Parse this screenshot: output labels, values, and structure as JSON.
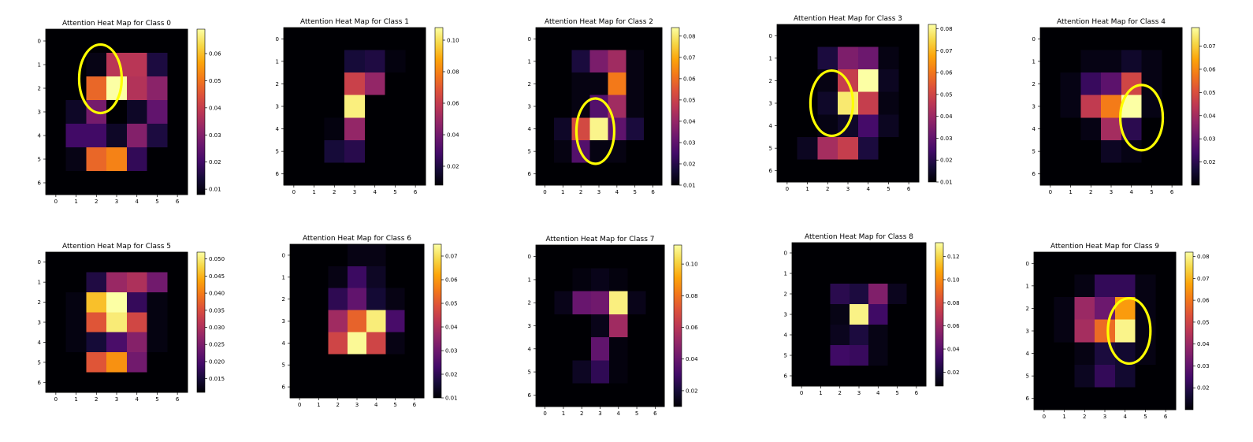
{
  "colormap": "inferno",
  "highlight_color": "#ffff00",
  "chart_data": [
    {
      "type": "heatmap",
      "title": "Attention Heat Map for Class 0",
      "x_ticks": [
        "0",
        "1",
        "2",
        "3",
        "4",
        "5",
        "6"
      ],
      "y_ticks": [
        "0",
        "1",
        "2",
        "3",
        "4",
        "5",
        "6"
      ],
      "vmin": 0.008,
      "vmax": 0.069,
      "colorbar_ticks": [
        "0.01",
        "0.02",
        "0.03",
        "0.04",
        "0.05",
        "0.06"
      ],
      "values": [
        [
          0.008,
          0.008,
          0.008,
          0.008,
          0.008,
          0.008,
          0.008
        ],
        [
          0.008,
          0.008,
          0.01,
          0.038,
          0.038,
          0.015,
          0.008
        ],
        [
          0.008,
          0.008,
          0.048,
          0.069,
          0.037,
          0.031,
          0.008
        ],
        [
          0.008,
          0.012,
          0.028,
          0.008,
          0.012,
          0.025,
          0.008
        ],
        [
          0.008,
          0.02,
          0.02,
          0.012,
          0.03,
          0.015,
          0.008
        ],
        [
          0.008,
          0.01,
          0.048,
          0.052,
          0.018,
          0.008,
          0.008
        ],
        [
          0.008,
          0.008,
          0.008,
          0.008,
          0.008,
          0.008,
          0.008
        ]
      ],
      "circle": {
        "row": 1.6,
        "col": 2.2
      }
    },
    {
      "type": "heatmap",
      "title": "Attention Heat Map for Class 1",
      "x_ticks": [
        "0",
        "1",
        "2",
        "3",
        "4",
        "5",
        "6"
      ],
      "y_ticks": [
        "0",
        "1",
        "2",
        "3",
        "4",
        "5",
        "6"
      ],
      "vmin": 0.008,
      "vmax": 0.108,
      "colorbar_ticks": [
        "0.02",
        "0.04",
        "0.06",
        "0.08",
        "0.10"
      ],
      "values": [
        [
          0.008,
          0.008,
          0.008,
          0.008,
          0.008,
          0.008,
          0.008
        ],
        [
          0.008,
          0.008,
          0.008,
          0.018,
          0.02,
          0.01,
          0.008
        ],
        [
          0.008,
          0.008,
          0.008,
          0.062,
          0.048,
          0.008,
          0.008
        ],
        [
          0.008,
          0.008,
          0.008,
          0.104,
          0.008,
          0.008,
          0.008
        ],
        [
          0.008,
          0.008,
          0.01,
          0.048,
          0.008,
          0.008,
          0.008
        ],
        [
          0.008,
          0.008,
          0.018,
          0.022,
          0.008,
          0.008,
          0.008
        ],
        [
          0.008,
          0.008,
          0.008,
          0.008,
          0.008,
          0.008,
          0.008
        ]
      ]
    },
    {
      "type": "heatmap",
      "title": "Attention Heat Map for Class 2",
      "x_ticks": [
        "0",
        "1",
        "2",
        "3",
        "4",
        "5",
        "6"
      ],
      "y_ticks": [
        "0",
        "1",
        "2",
        "3",
        "4",
        "5",
        "6"
      ],
      "vmin": 0.01,
      "vmax": 0.084,
      "colorbar_ticks": [
        "0.01",
        "0.02",
        "0.03",
        "0.04",
        "0.05",
        "0.06",
        "0.07",
        "0.08"
      ],
      "values": [
        [
          0.01,
          0.01,
          0.01,
          0.01,
          0.01,
          0.01,
          0.01
        ],
        [
          0.01,
          0.01,
          0.018,
          0.035,
          0.042,
          0.012,
          0.01
        ],
        [
          0.01,
          0.01,
          0.012,
          0.012,
          0.062,
          0.012,
          0.01
        ],
        [
          0.01,
          0.01,
          0.012,
          0.028,
          0.042,
          0.012,
          0.01
        ],
        [
          0.01,
          0.015,
          0.052,
          0.082,
          0.03,
          0.018,
          0.01
        ],
        [
          0.01,
          0.012,
          0.028,
          0.012,
          0.012,
          0.01,
          0.01
        ],
        [
          0.01,
          0.01,
          0.01,
          0.01,
          0.01,
          0.01,
          0.01
        ]
      ],
      "circle": {
        "row": 4.1,
        "col": 2.8
      }
    },
    {
      "type": "heatmap",
      "title": "Attention Heat Map for Class 3",
      "x_ticks": [
        "0",
        "1",
        "2",
        "3",
        "4",
        "5",
        "6"
      ],
      "y_ticks": [
        "0",
        "1",
        "2",
        "3",
        "4",
        "5",
        "6"
      ],
      "vmin": 0.01,
      "vmax": 0.082,
      "colorbar_ticks": [
        "0.01",
        "0.02",
        "0.03",
        "0.04",
        "0.05",
        "0.06",
        "0.07",
        "0.08"
      ],
      "values": [
        [
          0.01,
          0.01,
          0.01,
          0.01,
          0.01,
          0.01,
          0.01
        ],
        [
          0.01,
          0.01,
          0.018,
          0.035,
          0.032,
          0.012,
          0.01
        ],
        [
          0.01,
          0.01,
          0.012,
          0.048,
          0.082,
          0.014,
          0.01
        ],
        [
          0.01,
          0.01,
          0.015,
          0.078,
          0.048,
          0.012,
          0.01
        ],
        [
          0.01,
          0.01,
          0.012,
          0.015,
          0.025,
          0.014,
          0.01
        ],
        [
          0.01,
          0.014,
          0.042,
          0.048,
          0.018,
          0.01,
          0.01
        ],
        [
          0.01,
          0.01,
          0.01,
          0.01,
          0.01,
          0.01,
          0.01
        ]
      ],
      "circle": {
        "row": 3.0,
        "col": 2.2
      }
    },
    {
      "type": "heatmap",
      "title": "Attention Heat Map for Class 4",
      "x_ticks": [
        "0",
        "1",
        "2",
        "3",
        "4",
        "5",
        "6"
      ],
      "y_ticks": [
        "0",
        "1",
        "2",
        "3",
        "4",
        "5",
        "6"
      ],
      "vmin": 0.01,
      "vmax": 0.078,
      "colorbar_ticks": [
        "0.02",
        "0.03",
        "0.04",
        "0.05",
        "0.06",
        "0.07"
      ],
      "values": [
        [
          0.01,
          0.01,
          0.01,
          0.01,
          0.01,
          0.01,
          0.01
        ],
        [
          0.01,
          0.01,
          0.012,
          0.012,
          0.015,
          0.012,
          0.01
        ],
        [
          0.01,
          0.012,
          0.022,
          0.028,
          0.048,
          0.012,
          0.01
        ],
        [
          0.01,
          0.012,
          0.045,
          0.058,
          0.078,
          0.012,
          0.01
        ],
        [
          0.01,
          0.01,
          0.012,
          0.04,
          0.02,
          0.01,
          0.01
        ],
        [
          0.01,
          0.01,
          0.01,
          0.014,
          0.012,
          0.01,
          0.01
        ],
        [
          0.01,
          0.01,
          0.01,
          0.01,
          0.01,
          0.01,
          0.01
        ]
      ],
      "circle": {
        "row": 3.5,
        "col": 4.5
      }
    },
    {
      "type": "heatmap",
      "title": "Attention Heat Map for Class 5",
      "x_ticks": [
        "0",
        "1",
        "2",
        "3",
        "4",
        "5",
        "6"
      ],
      "y_ticks": [
        "0",
        "1",
        "2",
        "3",
        "4",
        "5",
        "6"
      ],
      "vmin": 0.011,
      "vmax": 0.052,
      "colorbar_ticks": [
        "0.015",
        "0.020",
        "0.025",
        "0.030",
        "0.035",
        "0.040",
        "0.045",
        "0.050"
      ],
      "values": [
        [
          0.011,
          0.011,
          0.011,
          0.011,
          0.011,
          0.011,
          0.011
        ],
        [
          0.011,
          0.011,
          0.016,
          0.028,
          0.03,
          0.024,
          0.011
        ],
        [
          0.011,
          0.012,
          0.046,
          0.052,
          0.018,
          0.012,
          0.011
        ],
        [
          0.011,
          0.012,
          0.036,
          0.05,
          0.034,
          0.012,
          0.011
        ],
        [
          0.011,
          0.012,
          0.015,
          0.02,
          0.026,
          0.012,
          0.011
        ],
        [
          0.011,
          0.011,
          0.036,
          0.042,
          0.024,
          0.011,
          0.011
        ],
        [
          0.011,
          0.011,
          0.011,
          0.011,
          0.011,
          0.011,
          0.011
        ]
      ]
    },
    {
      "type": "heatmap",
      "title": "Attention Heat Map for Class 6",
      "x_ticks": [
        "0",
        "1",
        "2",
        "3",
        "4",
        "5",
        "6"
      ],
      "y_ticks": [
        "0",
        "1",
        "2",
        "3",
        "4",
        "5",
        "6"
      ],
      "vmin": 0.01,
      "vmax": 0.075,
      "colorbar_ticks": [
        "0.01",
        "0.02",
        "0.03",
        "0.04",
        "0.05",
        "0.06",
        "0.07"
      ],
      "values": [
        [
          0.01,
          0.01,
          0.01,
          0.012,
          0.012,
          0.01,
          0.01
        ],
        [
          0.01,
          0.01,
          0.012,
          0.022,
          0.014,
          0.01,
          0.01
        ],
        [
          0.01,
          0.01,
          0.02,
          0.028,
          0.016,
          0.012,
          0.01
        ],
        [
          0.01,
          0.01,
          0.038,
          0.052,
          0.072,
          0.024,
          0.01
        ],
        [
          0.01,
          0.01,
          0.046,
          0.074,
          0.046,
          0.012,
          0.01
        ],
        [
          0.01,
          0.01,
          0.01,
          0.01,
          0.01,
          0.01,
          0.01
        ],
        [
          0.01,
          0.01,
          0.01,
          0.01,
          0.01,
          0.01,
          0.01
        ]
      ]
    },
    {
      "type": "heatmap",
      "title": "Attention Heat Map for Class 7",
      "x_ticks": [
        "0",
        "1",
        "2",
        "3",
        "4",
        "5",
        "6"
      ],
      "y_ticks": [
        "0",
        "1",
        "2",
        "3",
        "4",
        "5",
        "6"
      ],
      "vmin": 0.01,
      "vmax": 0.112,
      "colorbar_ticks": [
        "0.02",
        "0.04",
        "0.06",
        "0.08",
        "0.10"
      ],
      "values": [
        [
          0.01,
          0.01,
          0.01,
          0.01,
          0.01,
          0.01,
          0.01
        ],
        [
          0.01,
          0.01,
          0.012,
          0.014,
          0.012,
          0.01,
          0.01
        ],
        [
          0.01,
          0.014,
          0.04,
          0.042,
          0.108,
          0.014,
          0.01
        ],
        [
          0.01,
          0.01,
          0.01,
          0.014,
          0.054,
          0.01,
          0.01
        ],
        [
          0.01,
          0.01,
          0.01,
          0.038,
          0.012,
          0.01,
          0.01
        ],
        [
          0.01,
          0.01,
          0.016,
          0.026,
          0.012,
          0.01,
          0.01
        ],
        [
          0.01,
          0.01,
          0.01,
          0.01,
          0.01,
          0.01,
          0.01
        ]
      ]
    },
    {
      "type": "heatmap",
      "title": "Attention Heat Map for Class 8",
      "x_ticks": [
        "0",
        "1",
        "2",
        "3",
        "4",
        "5",
        "6"
      ],
      "y_ticks": [
        "0",
        "1",
        "2",
        "3",
        "4",
        "5",
        "6"
      ],
      "vmin": 0.008,
      "vmax": 0.132,
      "colorbar_ticks": [
        "0.02",
        "0.04",
        "0.06",
        "0.08",
        "0.10",
        "0.12"
      ],
      "values": [
        [
          0.008,
          0.008,
          0.008,
          0.008,
          0.008,
          0.008,
          0.008
        ],
        [
          0.008,
          0.008,
          0.008,
          0.008,
          0.008,
          0.008,
          0.008
        ],
        [
          0.008,
          0.008,
          0.026,
          0.022,
          0.052,
          0.014,
          0.008
        ],
        [
          0.008,
          0.008,
          0.012,
          0.128,
          0.032,
          0.008,
          0.008
        ],
        [
          0.008,
          0.008,
          0.014,
          0.022,
          0.012,
          0.008,
          0.008
        ],
        [
          0.008,
          0.008,
          0.032,
          0.03,
          0.012,
          0.008,
          0.008
        ],
        [
          0.008,
          0.008,
          0.008,
          0.008,
          0.008,
          0.008,
          0.008
        ]
      ]
    },
    {
      "type": "heatmap",
      "title": "Attention Heat Map for Class 9",
      "x_ticks": [
        "0",
        "1",
        "2",
        "3",
        "4",
        "5",
        "6"
      ],
      "y_ticks": [
        "0",
        "1",
        "2",
        "3",
        "4",
        "5",
        "6"
      ],
      "vmin": 0.01,
      "vmax": 0.082,
      "colorbar_ticks": [
        "0.02",
        "0.03",
        "0.04",
        "0.05",
        "0.06",
        "0.07",
        "0.08"
      ],
      "values": [
        [
          0.01,
          0.01,
          0.01,
          0.01,
          0.01,
          0.01,
          0.01
        ],
        [
          0.01,
          0.01,
          0.012,
          0.022,
          0.022,
          0.012,
          0.01
        ],
        [
          0.01,
          0.012,
          0.04,
          0.032,
          0.066,
          0.012,
          0.01
        ],
        [
          0.01,
          0.012,
          0.042,
          0.058,
          0.08,
          0.012,
          0.01
        ],
        [
          0.01,
          0.01,
          0.012,
          0.018,
          0.016,
          0.012,
          0.01
        ],
        [
          0.01,
          0.01,
          0.014,
          0.022,
          0.016,
          0.01,
          0.01
        ],
        [
          0.01,
          0.01,
          0.01,
          0.01,
          0.01,
          0.01,
          0.01
        ]
      ],
      "circle": {
        "row": 3.0,
        "col": 4.2
      }
    }
  ]
}
